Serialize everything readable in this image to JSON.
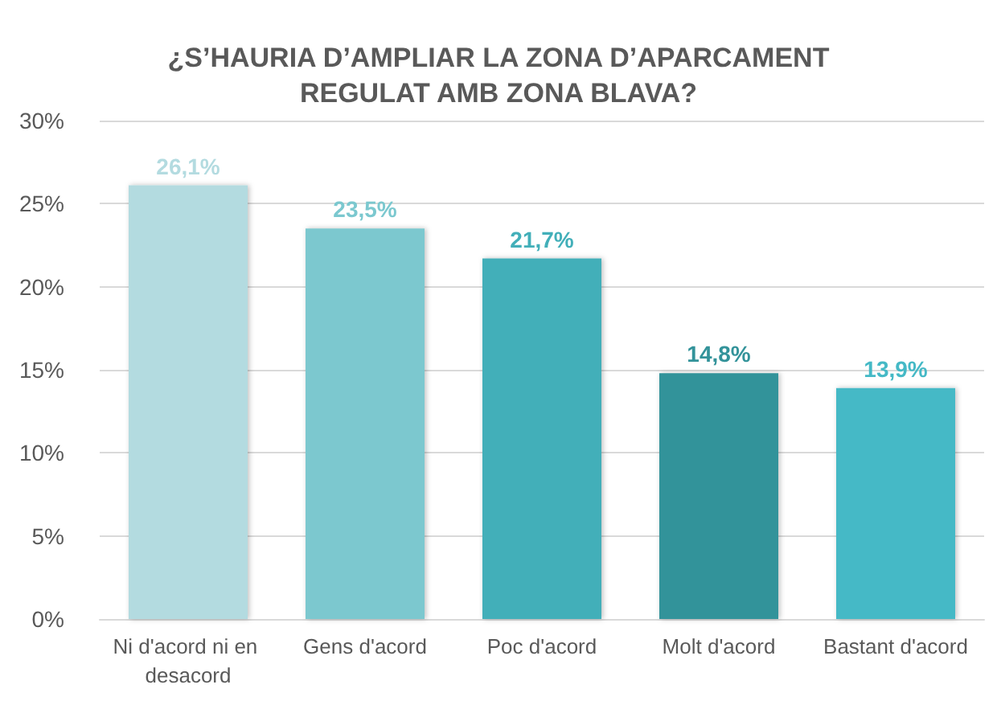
{
  "chart_data": {
    "type": "bar",
    "title": "¿S’HAURIA D’AMPLIAR LA ZONA D’APARCAMENT\nREGULAT AMB ZONA BLAVA?",
    "categories": [
      "Ni d'acord ni en desacord",
      "Gens d'acord",
      "Poc d'acord",
      "Molt d'acord",
      "Bastant d'acord"
    ],
    "values": [
      26.1,
      23.5,
      21.7,
      14.8,
      13.9
    ],
    "colors": [
      "#b3dbe0",
      "#7bc8cf",
      "#42afb9",
      "#33939a",
      "#45b9c6"
    ],
    "value_labels": [
      "26,1%",
      "23,5%",
      "21,7%",
      "14,8%",
      "13,9%"
    ],
    "ylim": [
      0,
      30
    ],
    "yticks": [
      {
        "value": 0,
        "label": "0%"
      },
      {
        "value": 5,
        "label": "5%"
      },
      {
        "value": 10,
        "label": "10%"
      },
      {
        "value": 15,
        "label": "15%"
      },
      {
        "value": 20,
        "label": "20%"
      },
      {
        "value": 25,
        "label": "25%"
      },
      {
        "value": 30,
        "label": "30%"
      }
    ],
    "grid": "y"
  }
}
